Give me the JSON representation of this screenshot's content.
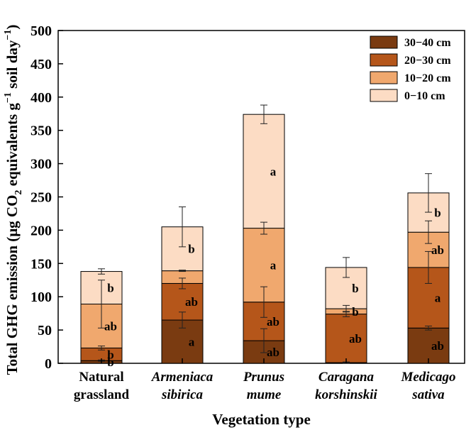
{
  "chart_data": {
    "type": "bar",
    "stacked": true,
    "xlabel": "Vegetation type",
    "ylabel": "Total GHG emission (μg CO2 equivalents g−1 soil day−1)",
    "ylim": [
      0,
      500
    ],
    "yticks": [
      0,
      50,
      100,
      150,
      200,
      250,
      300,
      350,
      400,
      450,
      500
    ],
    "categories": [
      {
        "lines": [
          "Natural",
          "grassland"
        ],
        "italic": false
      },
      {
        "lines": [
          "Armeniaca",
          "sibirica"
        ],
        "italic": true
      },
      {
        "lines": [
          "Prunus",
          "mume"
        ],
        "italic": true
      },
      {
        "lines": [
          "Caragana",
          "korshinskii"
        ],
        "italic": true
      },
      {
        "lines": [
          "Medicago",
          "sativa"
        ],
        "italic": true
      }
    ],
    "series": [
      {
        "name": "30−40 cm",
        "color": "#7a3b11",
        "values": [
          4,
          65,
          34,
          1,
          53
        ],
        "errors": [
          1,
          12,
          18,
          1,
          3
        ],
        "letters": [
          "b",
          "a",
          "ab",
          "",
          "ab"
        ]
      },
      {
        "name": "20−30 cm",
        "color": "#b5561a",
        "values": [
          19,
          55,
          58,
          73,
          91
        ],
        "errors": [
          3,
          8,
          23,
          4,
          24
        ],
        "letters": [
          "b",
          "ab",
          "ab",
          "ab",
          "a"
        ]
      },
      {
        "name": "10−20 cm",
        "color": "#f0a86e",
        "values": [
          66,
          19,
          111,
          8,
          53
        ],
        "errors": [
          36,
          1,
          9,
          5,
          17
        ],
        "letters": [
          "ab",
          "",
          "a",
          "b",
          "ab"
        ]
      },
      {
        "name": "0−10 cm",
        "color": "#fcdcc4",
        "values": [
          49,
          66,
          171,
          62,
          59
        ],
        "errors": [
          4,
          30,
          14,
          15,
          29
        ],
        "letters": [
          "b",
          "b",
          "a",
          "b",
          "b"
        ]
      }
    ],
    "legend": "top-right"
  }
}
